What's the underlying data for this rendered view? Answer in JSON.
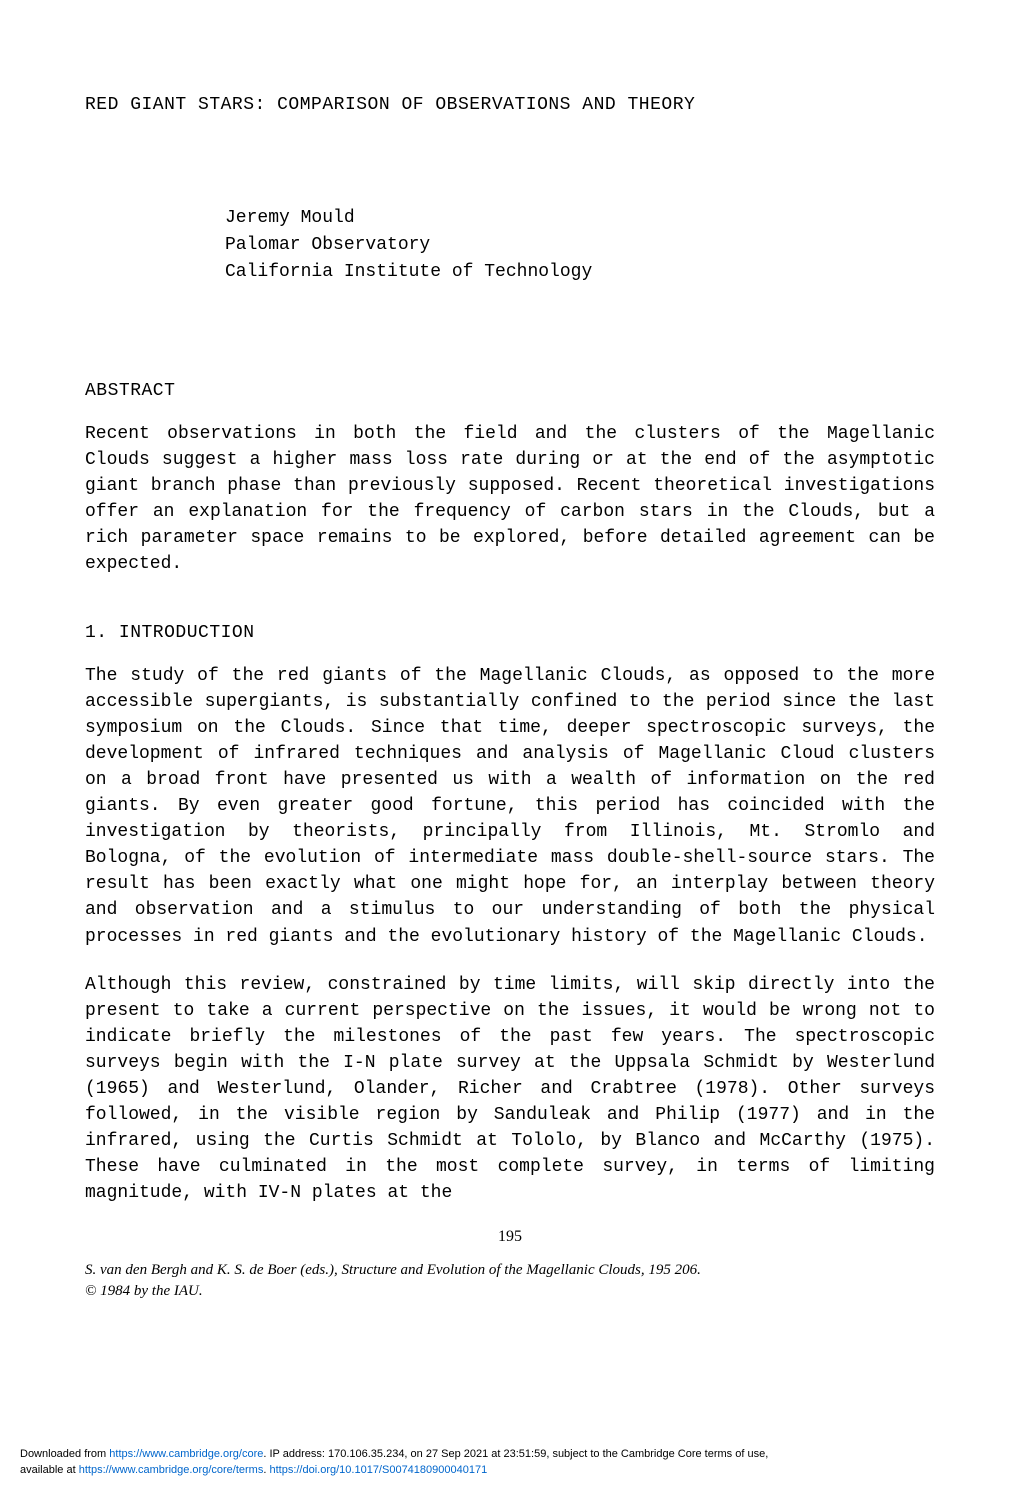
{
  "title": "RED GIANT STARS:  COMPARISON OF OBSERVATIONS AND THEORY",
  "author": {
    "name": "Jeremy Mould",
    "affiliation1": "Palomar Observatory",
    "affiliation2": "California Institute of Technology"
  },
  "abstract": {
    "heading": "ABSTRACT",
    "text": "Recent observations in both the field and the clusters of the Magellanic Clouds suggest a higher mass loss rate during or at the end of the asymptotic giant branch phase than previously supposed.  Recent theoretical investigations offer an explanation for the frequency of carbon stars in the Clouds, but a rich parameter space remains to be explored, before detailed agreement can be expected."
  },
  "section1": {
    "heading": "1.  INTRODUCTION",
    "paragraph1": "The study of the red giants of the Magellanic Clouds, as opposed to the more accessible supergiants, is substantially confined to the period since the last symposium on the Clouds.  Since that time, deeper spectroscopic surveys, the development of infrared techniques and analysis of Magellanic Cloud clusters on a broad front have presented us with a wealth of information on the red giants.  By even greater good fortune, this period has coincided with the investigation by theorists, principally from Illinois, Mt. Stromlo and Bologna, of the evolution of intermediate mass double-shell-source stars.  The result has been exactly what one might hope for, an interplay between theory and observation and a stimulus to our understanding of both the physical processes in red giants and the evolutionary history of the Magellanic Clouds.",
    "paragraph2": "Although this review, constrained by time limits, will skip directly into the present to take a current perspective on the issues, it would be wrong not to indicate briefly the milestones of the past few years.  The spectroscopic surveys begin with the I-N plate survey at the Uppsala Schmidt by Westerlund (1965) and Westerlund, Olander, Richer and Crabtree (1978).  Other surveys followed, in the visible region by Sanduleak and Philip (1977) and in the infrared, using the Curtis Schmidt at Tololo, by Blanco and McCarthy (1975).  These have culminated in the most complete survey, in terms of limiting magnitude, with IV-N plates at the"
  },
  "page_number": "195",
  "citation": {
    "line1": "S. van den Bergh and K. S. de Boer (eds.), Structure and Evolution of the Magellanic Clouds, 195  206.",
    "line2": "© 1984 by the IAU."
  },
  "download_footer": {
    "prefix": "Downloaded from ",
    "url1": "https://www.cambridge.org/core",
    "middle1": ". IP address: 170.106.35.234, on 27 Sep 2021 at 23:51:59, subject to the Cambridge Core terms of use,",
    "prefix2": "available at ",
    "url2": "https://www.cambridge.org/core/terms",
    "middle2": ". ",
    "url3": "https://doi.org/10.1017/S0074180900040171"
  },
  "colors": {
    "background": "#ffffff",
    "text": "#000000",
    "link": "#0066cc"
  },
  "typography": {
    "body_font": "Courier New",
    "body_fontsize": 18,
    "citation_font": "Times New Roman",
    "citation_fontsize": 15,
    "footer_font": "Arial",
    "footer_fontsize": 11,
    "page_number_fontsize": 16
  }
}
